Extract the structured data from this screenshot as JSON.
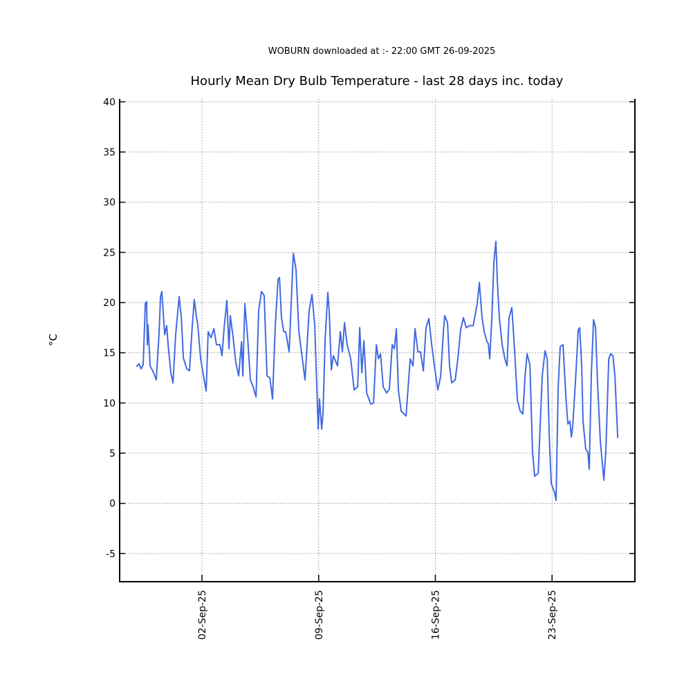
{
  "chart_data": {
    "type": "line",
    "subtitle": "WOBURN downloaded at :- 22:00 GMT 26-09-2025",
    "title": "Hourly Mean Dry Bulb Temperature - last 28 days inc. today",
    "y_label": "°C",
    "grid": true,
    "xlim": [
      -2.94,
      27.97
    ],
    "ylim": [
      -7.8,
      40.3
    ],
    "xticks": [
      {
        "value": 2,
        "label": "02-Sep-25"
      },
      {
        "value": 9,
        "label": "09-Sep-25"
      },
      {
        "value": 16,
        "label": "16-Sep-25"
      },
      {
        "value": 23,
        "label": "23-Sep-25"
      }
    ],
    "yticks": [
      -5,
      0,
      5,
      10,
      15,
      20,
      25,
      30,
      35,
      40
    ],
    "x": [
      -1.94,
      -1.78,
      -1.65,
      -1.53,
      -1.4,
      -1.32,
      -1.28,
      -1.24,
      -1.11,
      -0.9,
      -0.74,
      -0.57,
      -0.49,
      -0.41,
      -0.32,
      -0.24,
      -0.12,
      -0.03,
      0.13,
      0.26,
      0.42,
      0.63,
      0.76,
      0.88,
      1.09,
      1.25,
      1.42,
      1.54,
      1.67,
      1.75,
      1.92,
      2.08,
      2.25,
      2.37,
      2.54,
      2.71,
      2.87,
      3.08,
      3.2,
      3.33,
      3.49,
      3.62,
      3.7,
      3.87,
      4.03,
      4.2,
      4.37,
      4.45,
      4.57,
      4.74,
      4.9,
      5.07,
      5.24,
      5.4,
      5.57,
      5.73,
      5.82,
      5.9,
      6.07,
      6.23,
      6.4,
      6.56,
      6.65,
      6.77,
      6.9,
      7.02,
      7.23,
      7.48,
      7.64,
      7.81,
      8.02,
      8.18,
      8.43,
      8.6,
      8.76,
      8.89,
      8.97,
      9.05,
      9.18,
      9.26,
      9.39,
      9.55,
      9.63,
      9.76,
      9.88,
      10.13,
      10.3,
      10.42,
      10.55,
      10.71,
      10.92,
      11.13,
      11.34,
      11.46,
      11.59,
      11.71,
      11.88,
      12.12,
      12.29,
      12.46,
      12.58,
      12.71,
      12.87,
      13.08,
      13.24,
      13.41,
      13.54,
      13.66,
      13.78,
      13.95,
      14.24,
      14.49,
      14.66,
      14.78,
      14.95,
      15.11,
      15.28,
      15.44,
      15.61,
      15.78,
      15.94,
      16.15,
      16.32,
      16.48,
      16.56,
      16.73,
      16.85,
      16.98,
      17.19,
      17.35,
      17.52,
      17.68,
      17.85,
      18.06,
      18.27,
      18.51,
      18.64,
      18.8,
      18.93,
      19.1,
      19.18,
      19.26,
      19.39,
      19.51,
      19.63,
      19.72,
      19.84,
      20.01,
      20.17,
      20.3,
      20.42,
      20.59,
      20.76,
      20.92,
      21.09,
      21.25,
      21.38,
      21.5,
      21.67,
      21.83,
      21.96,
      22.17,
      22.41,
      22.58,
      22.71,
      22.83,
      22.95,
      23.16,
      23.24,
      23.37,
      23.49,
      23.66,
      23.83,
      23.95,
      24.07,
      24.16,
      24.24,
      24.41,
      24.57,
      24.66,
      24.78,
      24.86,
      25.02,
      25.15,
      25.23,
      25.36,
      25.49,
      25.61,
      25.73,
      25.9,
      26.11,
      26.23,
      26.4,
      26.52,
      26.65,
      26.77,
      26.94
    ],
    "series": [
      {
        "color": "#4169e1",
        "values": [
          13.6,
          13.9,
          13.4,
          13.8,
          19.9,
          20.1,
          15.8,
          17.8,
          13.7,
          13.0,
          12.3,
          17.1,
          20.6,
          21.1,
          18.9,
          16.8,
          17.7,
          15.8,
          13.0,
          12.0,
          16.8,
          20.6,
          18.5,
          14.5,
          13.4,
          13.2,
          17.8,
          20.3,
          18.5,
          17.8,
          14.4,
          12.8,
          11.2,
          17.1,
          16.5,
          17.4,
          15.8,
          15.8,
          14.7,
          17.5,
          20.2,
          15.4,
          18.7,
          16.5,
          14.0,
          12.7,
          16.1,
          12.7,
          19.9,
          16.5,
          12.3,
          11.6,
          10.6,
          19.2,
          21.1,
          20.7,
          16.5,
          12.7,
          12.5,
          10.4,
          17.8,
          22.3,
          22.5,
          18.5,
          17.1,
          17.1,
          15.1,
          24.9,
          23.3,
          17.1,
          14.4,
          12.3,
          19.2,
          20.8,
          17.8,
          11.6,
          7.4,
          10.4,
          7.4,
          8.9,
          16.5,
          21.0,
          19.2,
          13.3,
          14.7,
          13.7,
          17.1,
          15.1,
          18.0,
          15.8,
          14.4,
          11.3,
          11.6,
          17.5,
          13.0,
          16.2,
          11.0,
          9.9,
          10.0,
          15.8,
          14.4,
          14.9,
          11.6,
          11.0,
          11.4,
          15.8,
          15.4,
          17.4,
          11.3,
          9.2,
          8.7,
          14.4,
          13.7,
          17.4,
          15.1,
          15.1,
          13.2,
          17.5,
          18.4,
          15.8,
          13.7,
          11.3,
          12.7,
          17.1,
          18.7,
          18.0,
          13.7,
          12.0,
          12.3,
          14.4,
          17.3,
          18.5,
          17.5,
          17.7,
          17.7,
          19.9,
          22.0,
          18.5,
          17.1,
          16.1,
          15.9,
          14.4,
          18.5,
          24.0,
          26.1,
          22.0,
          18.5,
          15.8,
          14.4,
          13.7,
          18.5,
          19.5,
          15.1,
          10.3,
          9.2,
          8.9,
          12.7,
          14.9,
          13.8,
          5.1,
          2.7,
          3.0,
          12.7,
          15.2,
          14.4,
          6.8,
          2.0,
          1.0,
          0.3,
          11.6,
          15.6,
          15.8,
          10.6,
          7.9,
          8.2,
          6.6,
          7.7,
          12.3,
          17.3,
          17.5,
          13.7,
          8.2,
          5.4,
          5.1,
          3.4,
          13.0,
          18.3,
          17.5,
          12.0,
          6.1,
          2.3,
          5.4,
          14.4,
          14.9,
          14.7,
          12.7,
          6.5
        ]
      }
    ]
  }
}
